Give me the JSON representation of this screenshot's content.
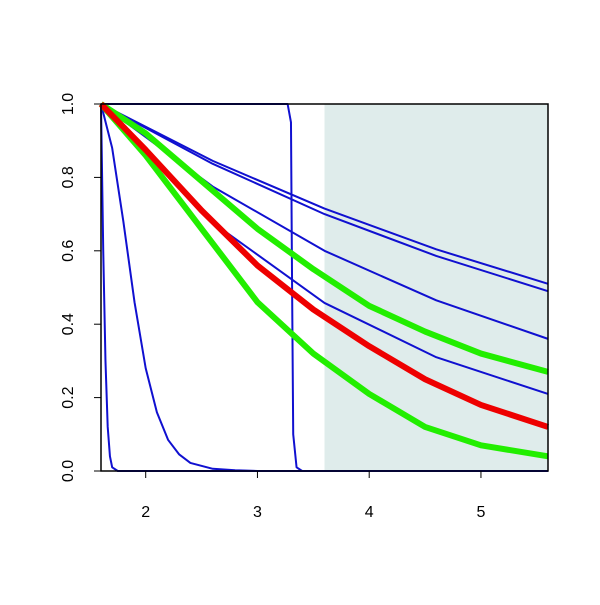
{
  "chart_data": {
    "type": "line",
    "xlim": [
      1.6,
      5.6
    ],
    "ylim": [
      0,
      1
    ],
    "xticks": [
      2,
      3,
      4,
      5
    ],
    "yticks": [
      {
        "value": 0,
        "label": "0.0"
      },
      {
        "value": 0.2,
        "label": "0.2"
      },
      {
        "value": 0.4,
        "label": "0.4"
      },
      {
        "value": 0.6,
        "label": "0.6"
      },
      {
        "value": 0.8,
        "label": "0.8"
      },
      {
        "value": 1,
        "label": "1.0"
      }
    ],
    "shaded_region": {
      "xlim": [
        3.6,
        5.6
      ],
      "color": "#dfeceb"
    },
    "series": [
      {
        "color": "#1010d0",
        "width": 2,
        "x": [
          1.6,
          1.62,
          1.64,
          1.66,
          1.68,
          1.7,
          1.75,
          5.6
        ],
        "values": [
          1,
          0.6,
          0.3,
          0.12,
          0.04,
          0.01,
          0,
          0
        ]
      },
      {
        "color": "#1010d0",
        "width": 2,
        "x": [
          1.6,
          1.7,
          1.8,
          1.9,
          2.0,
          2.1,
          2.2,
          2.3,
          2.4,
          2.6,
          2.8,
          3.0,
          5.6
        ],
        "values": [
          1,
          0.88,
          0.68,
          0.46,
          0.28,
          0.16,
          0.085,
          0.045,
          0.022,
          0.006,
          0.002,
          0,
          0
        ]
      },
      {
        "color": "#1010d0",
        "width": 2,
        "x": [
          1.6,
          3.27,
          3.3,
          3.31,
          3.32,
          3.35,
          3.4,
          5.6
        ],
        "values": [
          1,
          1,
          0.95,
          0.5,
          0.1,
          0.01,
          0,
          0
        ]
      },
      {
        "color": "#1010d0",
        "width": 2,
        "x": [
          1.6,
          2.6,
          3.6,
          4.6,
          5.6
        ],
        "values": [
          1,
          0.845,
          0.715,
          0.604,
          0.51
        ]
      },
      {
        "color": "#1010d0",
        "width": 2,
        "x": [
          1.6,
          2.6,
          3.6,
          4.6,
          5.6
        ],
        "values": [
          1,
          0.837,
          0.7,
          0.586,
          0.49
        ]
      },
      {
        "color": "#1010d0",
        "width": 2,
        "x": [
          1.6,
          2.6,
          3.6,
          4.6,
          5.6
        ],
        "values": [
          1,
          0.775,
          0.6,
          0.465,
          0.36
        ]
      },
      {
        "color": "#1010d0",
        "width": 2,
        "x": [
          1.6,
          2.6,
          3.6,
          4.6,
          5.6
        ],
        "values": [
          1,
          0.677,
          0.458,
          0.31,
          0.21
        ]
      },
      {
        "color": "#22ee00",
        "width": 6,
        "x": [
          1.6,
          2.0,
          2.5,
          3.0,
          3.5,
          4.0,
          4.5,
          5.0,
          5.6
        ],
        "values": [
          1,
          0.92,
          0.79,
          0.66,
          0.55,
          0.45,
          0.38,
          0.32,
          0.27
        ]
      },
      {
        "color": "#22ee00",
        "width": 6,
        "x": [
          1.6,
          2.0,
          2.5,
          3.0,
          3.5,
          4.0,
          4.5,
          5.0,
          5.6
        ],
        "values": [
          1,
          0.86,
          0.66,
          0.46,
          0.32,
          0.21,
          0.12,
          0.07,
          0.04
        ]
      },
      {
        "color": "#ee0000",
        "width": 6,
        "x": [
          1.6,
          2.0,
          2.5,
          3.0,
          3.5,
          4.0,
          4.5,
          5.0,
          5.6
        ],
        "values": [
          1,
          0.875,
          0.71,
          0.56,
          0.44,
          0.34,
          0.25,
          0.18,
          0.12
        ]
      }
    ]
  }
}
